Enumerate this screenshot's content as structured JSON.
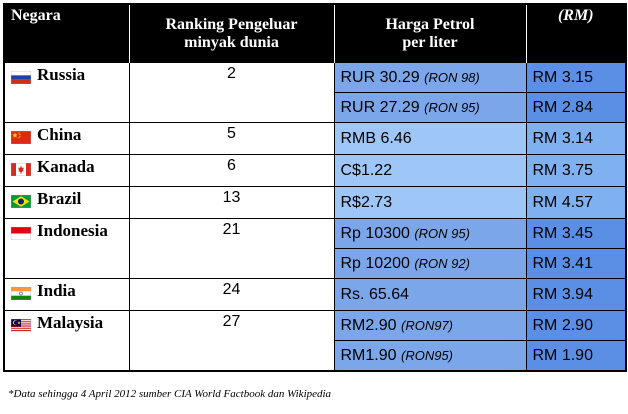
{
  "headers": {
    "country": "Negara",
    "ranking_line1": "Ranking Pengeluar",
    "ranking_line2": "minyak dunia",
    "price_line1": "Harga Petrol",
    "price_line2": "per liter",
    "rm": "(RM)"
  },
  "rows": [
    {
      "country": "Russia",
      "flag": "russia-flag-icon",
      "rank": "2",
      "prices": [
        {
          "price": "RUR 30.29",
          "grade": "(RON 98)",
          "rm": "RM 3.15"
        },
        {
          "price": "RUR 27.29",
          "grade": "(RON 95)",
          "rm": "RM 2.84"
        }
      ]
    },
    {
      "country": "China",
      "flag": "china-flag-icon",
      "rank": "5",
      "prices": [
        {
          "price": "RMB 6.46",
          "grade": "",
          "rm": "RM 3.14"
        }
      ]
    },
    {
      "country": "Kanada",
      "flag": "canada-flag-icon",
      "rank": "6",
      "prices": [
        {
          "price": "C$1.22",
          "grade": "",
          "rm": "RM 3.75"
        }
      ]
    },
    {
      "country": "Brazil",
      "flag": "brazil-flag-icon",
      "rank": "13",
      "prices": [
        {
          "price": "R$2.73",
          "grade": "",
          "rm": "RM 4.57"
        }
      ]
    },
    {
      "country": "Indonesia",
      "flag": "indonesia-flag-icon",
      "rank": "21",
      "prices": [
        {
          "price": "Rp 10300",
          "grade": "(RON 95)",
          "rm": "RM 3.45"
        },
        {
          "price": "Rp 10200",
          "grade": "(RON 92)",
          "rm": "RM 3.41"
        }
      ]
    },
    {
      "country": "India",
      "flag": "india-flag-icon",
      "rank": "24",
      "prices": [
        {
          "price": "Rs. 65.64",
          "grade": "",
          "rm": "RM 3.94"
        }
      ]
    },
    {
      "country": "Malaysia",
      "flag": "malaysia-flag-icon",
      "rank": "27",
      "prices": [
        {
          "price": "RM2.90",
          "grade": "(RON97)",
          "rm": "RM 2.90"
        },
        {
          "price": "RM1.90",
          "grade": "(RON95)",
          "rm": "RM 1.90"
        }
      ]
    }
  ],
  "footnote": "*Data sehingga 4 April 2012 sumber CIA World Factbook dan Wikipedia",
  "colors": {
    "price_cell": "#7ba7ea",
    "rm_cell": "#5b8fe5",
    "price_cell_light": "#9ec6f7",
    "rm_cell_light": "#7fb0f0",
    "header_bg": "#000000"
  }
}
